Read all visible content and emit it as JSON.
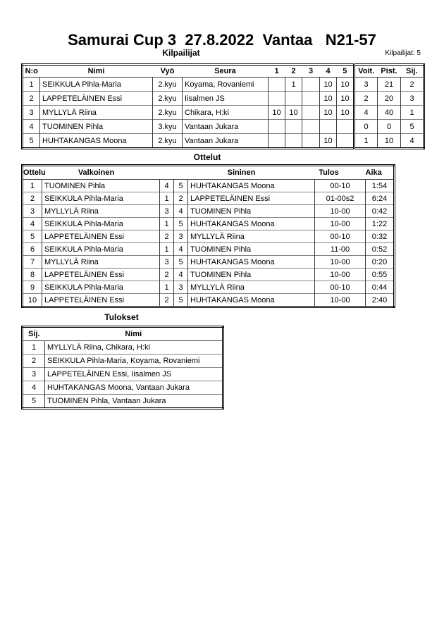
{
  "page": {
    "title": "Samurai Cup 3  27.8.2022  Vantaa   N21-57",
    "competitors_count_label": "Kilpailijat: 5"
  },
  "sections": {
    "competitors": {
      "heading": "Kilpailijat",
      "columns": [
        "N:o",
        "Nimi",
        "Vyö",
        "Seura",
        "1",
        "2",
        "3",
        "4",
        "5",
        "Voit.",
        "Pist.",
        "Sij."
      ],
      "rows": [
        [
          "1",
          "SEIKKULA Pihla-Maria",
          "2.kyu",
          "Koyama, Rovaniemi",
          "",
          "1",
          "",
          "10",
          "10",
          "3",
          "21",
          "2"
        ],
        [
          "2",
          "LAPPETELÄINEN Essi",
          "2.kyu",
          "Iisalmen JS",
          "",
          "",
          "",
          "10",
          "10",
          "2",
          "20",
          "3"
        ],
        [
          "3",
          "MYLLYLÄ Riina",
          "2.kyu",
          "Chikara, H:ki",
          "10",
          "10",
          "",
          "10",
          "10",
          "4",
          "40",
          "1"
        ],
        [
          "4",
          "TUOMINEN Pihla",
          "3.kyu",
          "Vantaan Jukara",
          "",
          "",
          "",
          "",
          "",
          "0",
          "0",
          "5"
        ],
        [
          "5",
          "HUHTAKANGAS Moona",
          "2.kyu",
          "Vantaan Jukara",
          "",
          "",
          "",
          "10",
          "",
          "1",
          "10",
          "4"
        ]
      ]
    },
    "matches": {
      "heading": "Ottelut",
      "columns": [
        "Ottelu",
        "Valkoinen",
        "",
        "",
        "Sininen",
        "Tulos",
        "Aika"
      ],
      "rows": [
        [
          "1",
          "TUOMINEN Pihla",
          "4",
          "5",
          "HUHTAKANGAS Moona",
          "00-10",
          "1:54"
        ],
        [
          "2",
          "SEIKKULA Pihla-Maria",
          "1",
          "2",
          "LAPPETELÄINEN Essi",
          "01-00s2",
          "6:24"
        ],
        [
          "3",
          "MYLLYLÄ Riina",
          "3",
          "4",
          "TUOMINEN Pihla",
          "10-00",
          "0:42"
        ],
        [
          "4",
          "SEIKKULA Pihla-Maria",
          "1",
          "5",
          "HUHTAKANGAS Moona",
          "10-00",
          "1:22"
        ],
        [
          "5",
          "LAPPETELÄINEN Essi",
          "2",
          "3",
          "MYLLYLÄ Riina",
          "00-10",
          "0:32"
        ],
        [
          "6",
          "SEIKKULA Pihla-Maria",
          "1",
          "4",
          "TUOMINEN Pihla",
          "11-00",
          "0:52"
        ],
        [
          "7",
          "MYLLYLÄ Riina",
          "3",
          "5",
          "HUHTAKANGAS Moona",
          "10-00",
          "0:20"
        ],
        [
          "8",
          "LAPPETELÄINEN Essi",
          "2",
          "4",
          "TUOMINEN Pihla",
          "10-00",
          "0:55"
        ],
        [
          "9",
          "SEIKKULA Pihla-Maria",
          "1",
          "3",
          "MYLLYLÄ Riina",
          "00-10",
          "0:44"
        ],
        [
          "10",
          "LAPPETELÄINEN Essi",
          "2",
          "5",
          "HUHTAKANGAS Moona",
          "10-00",
          "2:40"
        ]
      ]
    },
    "results": {
      "heading": "Tulokset",
      "columns": [
        "Sij.",
        "Nimi"
      ],
      "rows": [
        [
          "1",
          "MYLLYLÄ Riina, Chikara, H:ki"
        ],
        [
          "2",
          "SEIKKULA Pihla-Maria, Koyama, Rovaniemi"
        ],
        [
          "3",
          "LAPPETELÄINEN Essi, Iisalmen JS"
        ],
        [
          "4",
          "HUHTAKANGAS Moona, Vantaan Jukara"
        ],
        [
          "5",
          "TUOMINEN Pihla, Vantaan Jukara"
        ]
      ]
    }
  }
}
